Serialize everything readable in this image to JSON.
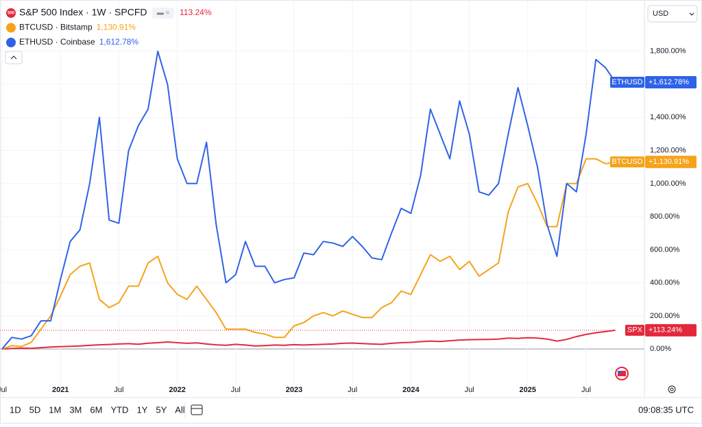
{
  "chart_data": {
    "type": "line",
    "currency": "USD",
    "x": [
      "2020-07",
      "2020-08",
      "2020-09",
      "2020-10",
      "2020-11",
      "2020-12",
      "2021-01",
      "2021-02",
      "2021-03",
      "2021-04",
      "2021-05",
      "2021-06",
      "2021-07",
      "2021-08",
      "2021-09",
      "2021-10",
      "2021-11",
      "2021-12",
      "2022-01",
      "2022-02",
      "2022-03",
      "2022-04",
      "2022-05",
      "2022-06",
      "2022-07",
      "2022-08",
      "2022-09",
      "2022-10",
      "2022-11",
      "2022-12",
      "2023-01",
      "2023-02",
      "2023-03",
      "2023-04",
      "2023-05",
      "2023-06",
      "2023-07",
      "2023-08",
      "2023-09",
      "2023-10",
      "2023-11",
      "2023-12",
      "2024-01",
      "2024-02",
      "2024-03",
      "2024-04",
      "2024-05",
      "2024-06",
      "2024-07",
      "2024-08",
      "2024-09",
      "2024-10",
      "2024-11",
      "2024-12",
      "2025-01",
      "2025-02",
      "2025-03",
      "2025-04",
      "2025-05",
      "2025-06",
      "2025-07",
      "2025-08",
      "2025-09",
      "2025-10"
    ],
    "series": [
      {
        "name": "S&P 500 Index · 1W · SPCFD",
        "symbol": "SPX",
        "badge": "500",
        "legend_value": "113.24%",
        "last_label": "+113.24%",
        "color": "#e3283c",
        "values": [
          0,
          3,
          5,
          4,
          8,
          12,
          14,
          16,
          18,
          22,
          25,
          27,
          30,
          32,
          29,
          35,
          38,
          42,
          38,
          34,
          37,
          30,
          25,
          22,
          28,
          24,
          18,
          20,
          24,
          22,
          26,
          24,
          26,
          28,
          30,
          34,
          36,
          33,
          30,
          28,
          34,
          38,
          40,
          44,
          48,
          45,
          50,
          54,
          56,
          57,
          58,
          60,
          66,
          64,
          68,
          66,
          60,
          48,
          58,
          75,
          88,
          98,
          105,
          113.24
        ]
      },
      {
        "name": "BTCUSD · Bitstamp",
        "symbol": "BTCUSD",
        "legend_value": "1,130.91%",
        "last_label": "+1,130.91%",
        "color": "#f5a31a",
        "values": [
          0,
          20,
          15,
          40,
          120,
          200,
          320,
          450,
          500,
          520,
          300,
          250,
          280,
          380,
          380,
          520,
          560,
          400,
          330,
          300,
          380,
          300,
          220,
          120,
          120,
          120,
          100,
          90,
          70,
          70,
          140,
          160,
          200,
          220,
          200,
          230,
          210,
          190,
          190,
          250,
          280,
          350,
          330,
          450,
          570,
          530,
          560,
          480,
          530,
          440,
          480,
          520,
          830,
          980,
          1000,
          880,
          740,
          740,
          1000,
          1000,
          1150,
          1150,
          1120,
          1130.91
        ]
      },
      {
        "name": "ETHUSD · Coinbase",
        "symbol": "ETHUSD",
        "legend_value": "1,612.78%",
        "last_label": "+1,612.78%",
        "color": "#2f62e6",
        "values": [
          0,
          70,
          60,
          80,
          170,
          170,
          420,
          650,
          720,
          1000,
          1400,
          780,
          760,
          1200,
          1350,
          1450,
          1800,
          1600,
          1150,
          1000,
          1000,
          1250,
          750,
          400,
          450,
          650,
          500,
          500,
          400,
          420,
          430,
          580,
          570,
          650,
          640,
          620,
          680,
          620,
          550,
          540,
          700,
          850,
          820,
          1050,
          1450,
          1300,
          1150,
          1500,
          1300,
          950,
          930,
          1000,
          1300,
          1580,
          1350,
          1100,
          750,
          560,
          1000,
          950,
          1300,
          1750,
          1700,
          1612.78
        ]
      }
    ],
    "ylim": [
      -190,
      2110
    ],
    "yticks": [
      {
        "value": 0,
        "label": "0.00%"
      },
      {
        "value": 200,
        "label": "200.00%"
      },
      {
        "value": 400,
        "label": "400.00%"
      },
      {
        "value": 600,
        "label": "600.00%"
      },
      {
        "value": 800,
        "label": "800.00%"
      },
      {
        "value": 1000,
        "label": "1,000.00%"
      },
      {
        "value": 1200,
        "label": "1,200.00%"
      },
      {
        "value": 1400,
        "label": "1,400.00%"
      },
      {
        "value": 1600,
        "label": "1,600.00%"
      },
      {
        "value": 1800,
        "label": "1,800.00%"
      }
    ],
    "xticks": [
      {
        "value": "2020-07",
        "label": "Jul"
      },
      {
        "value": "2021-01",
        "label": "2021"
      },
      {
        "value": "2021-07",
        "label": "Jul"
      },
      {
        "value": "2022-01",
        "label": "2022"
      },
      {
        "value": "2022-07",
        "label": "Jul"
      },
      {
        "value": "2023-01",
        "label": "2023"
      },
      {
        "value": "2023-07",
        "label": "Jul"
      },
      {
        "value": "2024-01",
        "label": "2024"
      },
      {
        "value": "2024-07",
        "label": "Jul"
      },
      {
        "value": "2025-01",
        "label": "2025"
      },
      {
        "value": "2025-07",
        "label": "Jul"
      }
    ],
    "grid": true,
    "timeframes": [
      "1D",
      "5D",
      "1M",
      "3M",
      "6M",
      "YTD",
      "1Y",
      "5Y",
      "All"
    ],
    "clock": "09:08:35 UTC"
  }
}
